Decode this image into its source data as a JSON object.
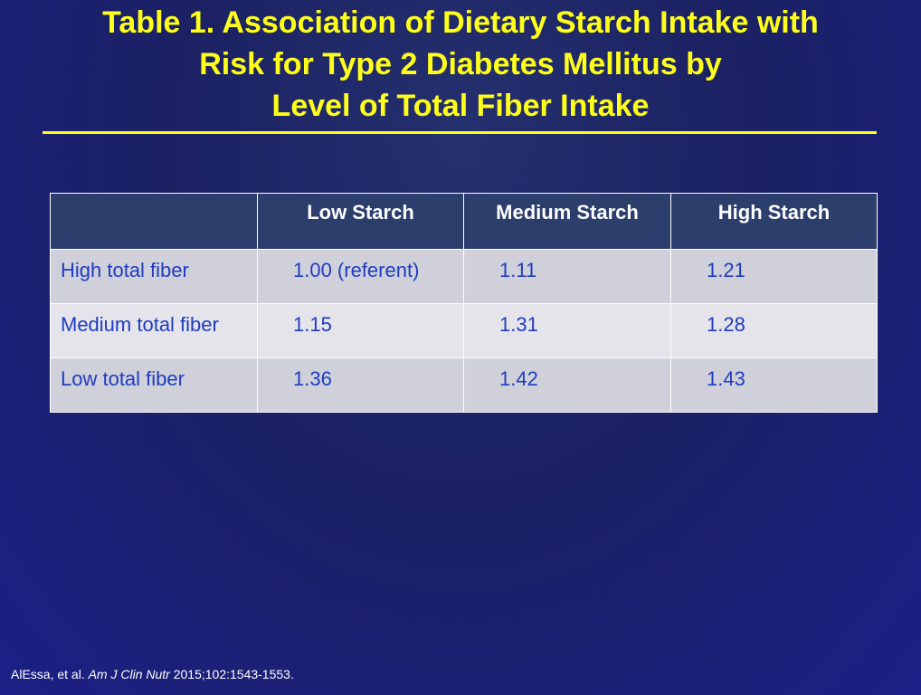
{
  "header": {
    "title_lines": [
      "Table 1.  Association of Dietary Starch Intake with",
      "Risk for Type 2 Diabetes Mellitus by",
      "Level of Total Fiber Intake"
    ]
  },
  "table": {
    "columns": [
      "",
      "Low Starch",
      "Medium Starch",
      "High Starch"
    ],
    "rows": [
      [
        "High total fiber",
        "1.00 (referent)",
        "1.11",
        "1.21"
      ],
      [
        "Medium total fiber",
        "1.15",
        "1.31",
        "1.28"
      ],
      [
        "Low total fiber",
        "1.36",
        "1.42",
        "1.43"
      ]
    ]
  },
  "citation": {
    "authors": "AlEssa, et al. ",
    "journal": "Am J Clin Nutr",
    "details": " 2015;102:1543-1553."
  }
}
